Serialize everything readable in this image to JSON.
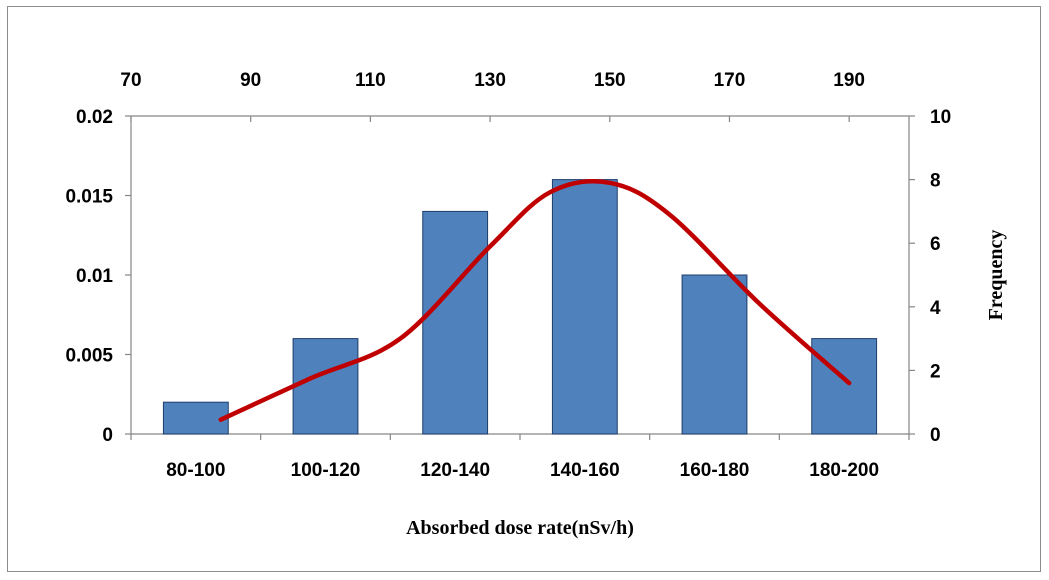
{
  "chart_data": {
    "type": "bar",
    "title": "",
    "categories": [
      "80-100",
      "100-120",
      "120-140",
      "140-160",
      "160-180",
      "180-200"
    ],
    "xlabel": "Absorbed dose rate(nSv/h)",
    "series": [
      {
        "type": "bar",
        "axis": "right",
        "values": [
          1,
          3,
          7,
          8,
          5,
          3
        ],
        "color": "#4f81bd",
        "edge": "#1f3d6b"
      },
      {
        "type": "line",
        "axis": "left",
        "top_axis": true,
        "x": [
          85,
          100,
          115,
          130,
          140,
          150,
          160,
          175,
          190
        ],
        "y": [
          0.0009,
          0.0035,
          0.006,
          0.0118,
          0.0152,
          0.0158,
          0.0138,
          0.0082,
          0.0032
        ],
        "color": "#c00000"
      }
    ],
    "y_left": {
      "lim": [
        0,
        0.02
      ],
      "ticks": [
        0,
        0.005,
        0.01,
        0.015,
        0.02
      ],
      "tick_labels": [
        "0",
        "0.005",
        "0.01",
        "0.015",
        "0.02"
      ],
      "label": ""
    },
    "y_right": {
      "lim": [
        0,
        10
      ],
      "ticks": [
        0,
        2,
        4,
        6,
        8,
        10
      ],
      "tick_labels": [
        "0",
        "2",
        "4",
        "6",
        "8",
        "10"
      ],
      "label": "Frequency"
    },
    "x_top": {
      "lim": [
        70,
        200
      ],
      "ticks": [
        70,
        90,
        110,
        130,
        150,
        170,
        190
      ],
      "tick_labels": [
        "70",
        "90",
        "110",
        "130",
        "150",
        "170",
        "190"
      ]
    },
    "grid": false,
    "legend": "none"
  }
}
